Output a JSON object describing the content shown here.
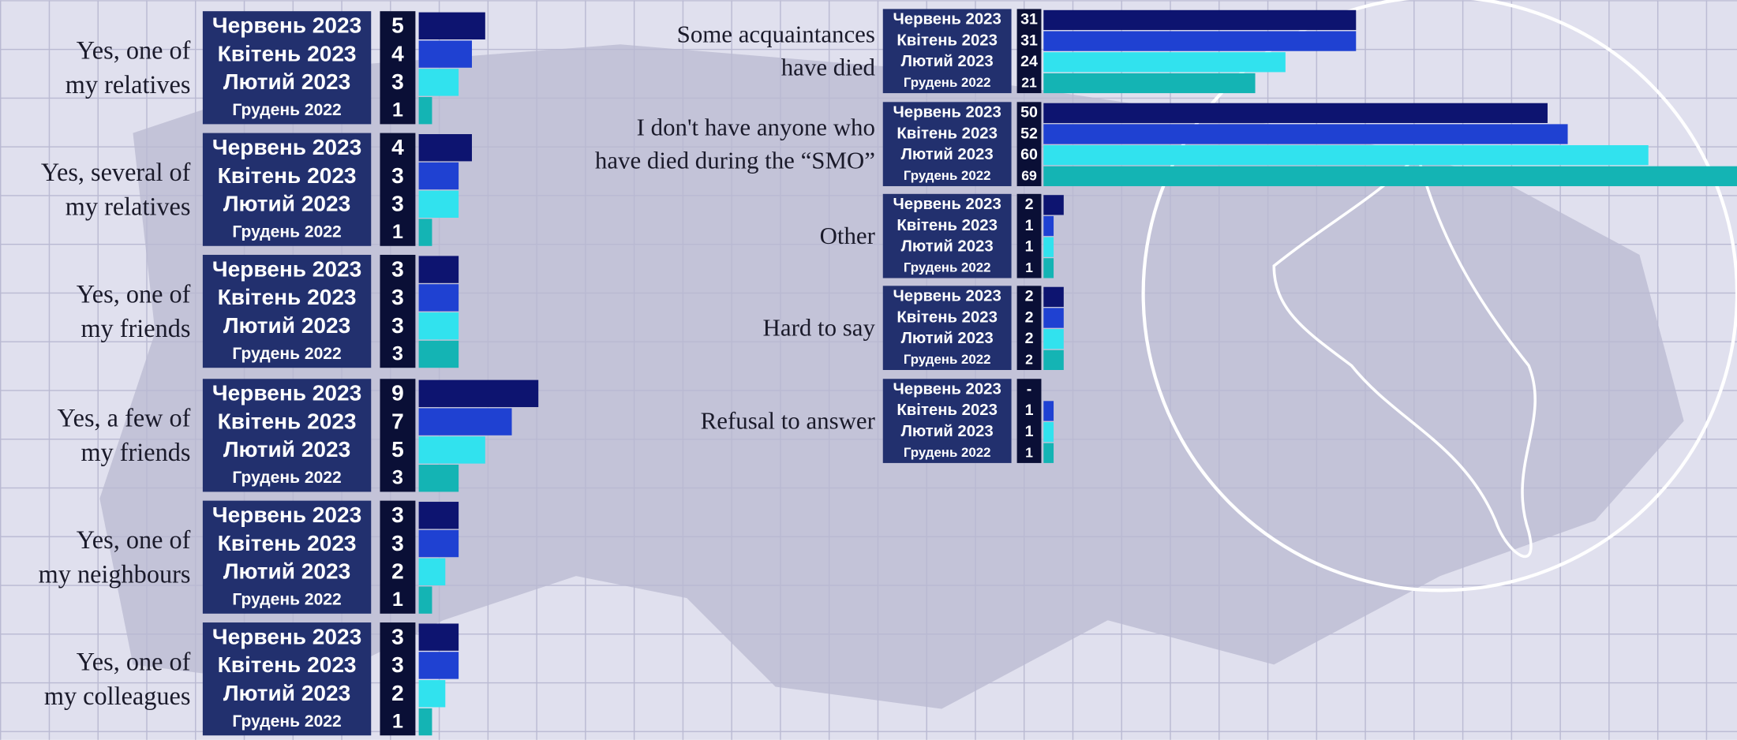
{
  "chart_data": {
    "type": "bar",
    "categories": [
      "Yes, one of\nmy relatives",
      "Yes, several of\nmy relatives",
      "Yes, one of\nmy friends",
      "Yes, a few of\nmy friends",
      "Yes, one of\nmy neighbours",
      "Yes, one of\nmy colleagues",
      "Some acquaintances\nhave died",
      "I don't have anyone who\nhave died during the “SMO”",
      "Other",
      "Hard to say",
      "Refusal to answer"
    ],
    "series": [
      {
        "name": "Червень 2023",
        "color": "#0d1470",
        "values": [
          5,
          4,
          3,
          9,
          3,
          3,
          31,
          50,
          2,
          2,
          null
        ],
        "value_labels": [
          "5",
          "4",
          "3",
          "9",
          "3",
          "3",
          "31",
          "50",
          "2",
          "2",
          "-"
        ]
      },
      {
        "name": "Квітень 2023",
        "color": "#1f41d2",
        "values": [
          4,
          3,
          3,
          7,
          3,
          3,
          31,
          52,
          1,
          2,
          1
        ]
      },
      {
        "name": "Лютий 2023",
        "color": "#31e2ee",
        "values": [
          3,
          3,
          3,
          5,
          2,
          2,
          24,
          60,
          1,
          2,
          1
        ]
      },
      {
        "name": "Грудень 2022",
        "color": "#14b4b4",
        "values": [
          1,
          1,
          3,
          3,
          1,
          1,
          21,
          69,
          1,
          2,
          1
        ]
      }
    ]
  }
}
